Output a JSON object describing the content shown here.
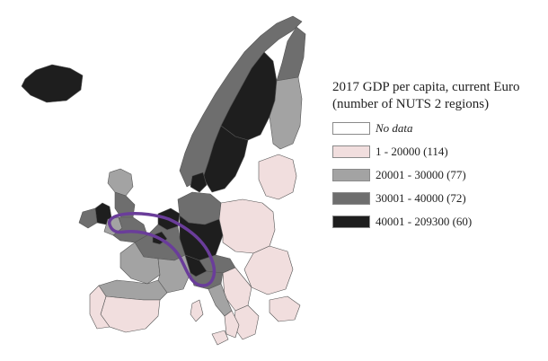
{
  "legend": {
    "title_line1": "2017 GDP per capita, current Euro",
    "title_line2": "(number of NUTS 2 regions)",
    "items": [
      {
        "label": "No data",
        "color": "#ffffff",
        "italic": true
      },
      {
        "label": "1 - 20000 (114)",
        "color": "#f1dede"
      },
      {
        "label": "20001 - 30000 (77)",
        "color": "#a3a3a3"
      },
      {
        "label": "30001 - 40000 (72)",
        "color": "#6e6e6e"
      },
      {
        "label": "40001 - 209300 (60)",
        "color": "#1e1e1e"
      }
    ]
  },
  "highlight": {
    "shape": "banana-outline",
    "color": "#6a3d9a"
  }
}
